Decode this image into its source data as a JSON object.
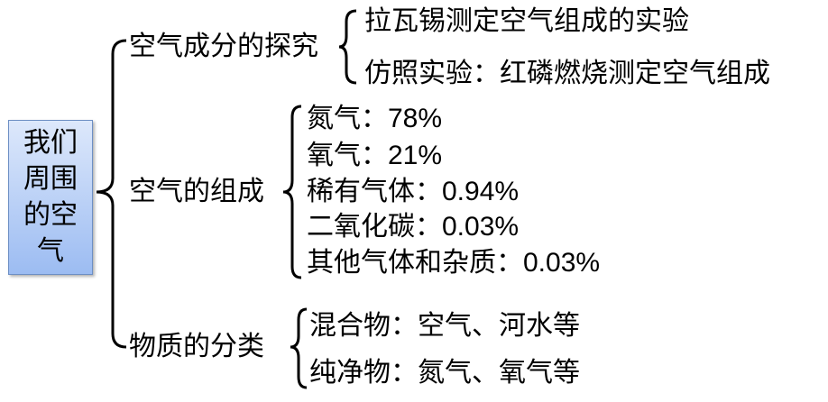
{
  "root": {
    "label": "我们周围的空气"
  },
  "branches": [
    {
      "label": "空气成分的探究",
      "children": [
        "拉瓦锡测定空气组成的实验",
        "仿照实验：红磷燃烧测定空气组成"
      ]
    },
    {
      "label": "空气的组成",
      "children": [
        "氮气：78%",
        "氧气：21%",
        "稀有气体：0.94%",
        "二氧化碳：0.03%",
        "其他气体和杂质：0.03%"
      ]
    },
    {
      "label": "物质的分类",
      "children": [
        "混合物：空气、河水等",
        "纯净物：氮气、氧气等"
      ]
    }
  ],
  "colors": {
    "root_fill_top": "#dde8fb",
    "root_fill_bottom": "#9cbcf2",
    "root_border": "#6d8fc4"
  }
}
